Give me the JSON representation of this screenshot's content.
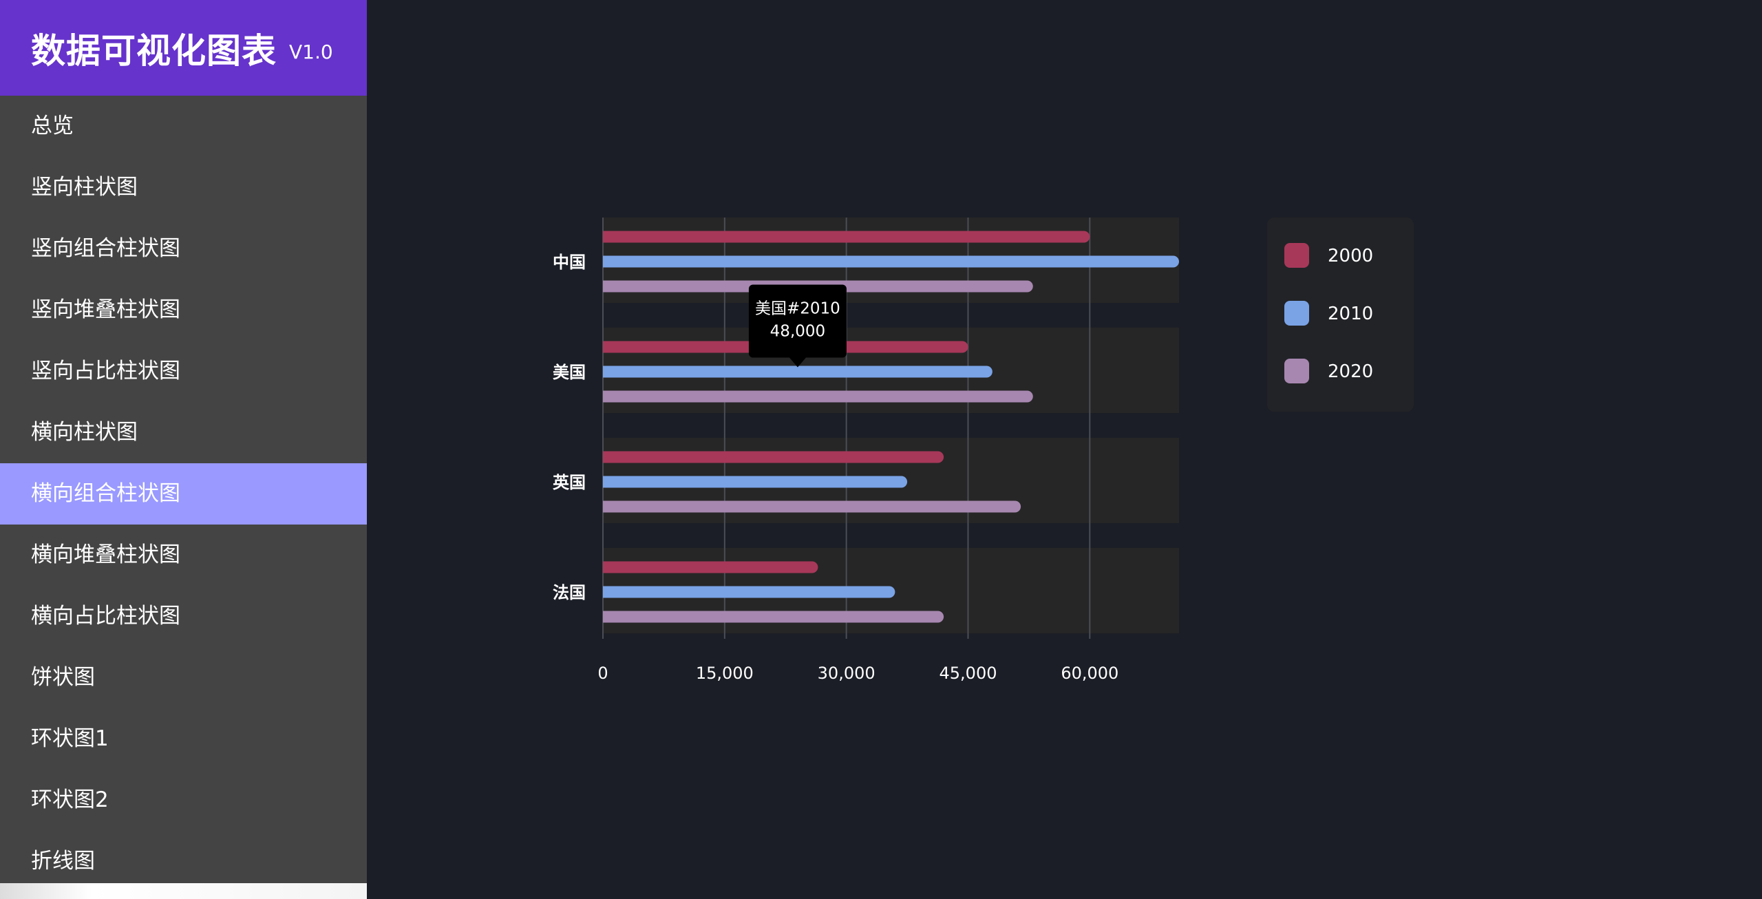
{
  "sidebar": {
    "title": "数据可视化图表",
    "version": "V1.0",
    "items": [
      {
        "label": "总览"
      },
      {
        "label": "竖向柱状图"
      },
      {
        "label": "竖向组合柱状图"
      },
      {
        "label": "竖向堆叠柱状图"
      },
      {
        "label": "竖向占比柱状图"
      },
      {
        "label": "横向柱状图"
      },
      {
        "label": "横向组合柱状图",
        "active": true
      },
      {
        "label": "横向堆叠柱状图"
      },
      {
        "label": "横向占比柱状图"
      },
      {
        "label": "饼状图"
      },
      {
        "label": "环状图1"
      },
      {
        "label": "环状图2"
      },
      {
        "label": "折线图"
      }
    ]
  },
  "chart_data": {
    "type": "bar",
    "orientation": "horizontal",
    "categories": [
      "中国",
      "美国",
      "英国",
      "法国"
    ],
    "series": [
      {
        "name": "2000",
        "color": "#a8385a",
        "values": [
          60000,
          45000,
          42000,
          26500
        ]
      },
      {
        "name": "2010",
        "color": "#7aa3e6",
        "values": [
          71000,
          48000,
          37500,
          36000
        ]
      },
      {
        "name": "2020",
        "color": "#a787b0",
        "values": [
          53000,
          53000,
          51500,
          42000
        ]
      }
    ],
    "x_ticks": [
      "0",
      "15,000",
      "30,000",
      "45,000",
      "60,000"
    ],
    "x_tick_values": [
      0,
      15000,
      30000,
      45000,
      60000
    ],
    "xlim": [
      0,
      71000
    ],
    "grid": "vertical",
    "legend_position": "right",
    "tooltip": {
      "title": "美国#2010",
      "value": "48,000",
      "category": "美国",
      "series": "2010"
    }
  }
}
